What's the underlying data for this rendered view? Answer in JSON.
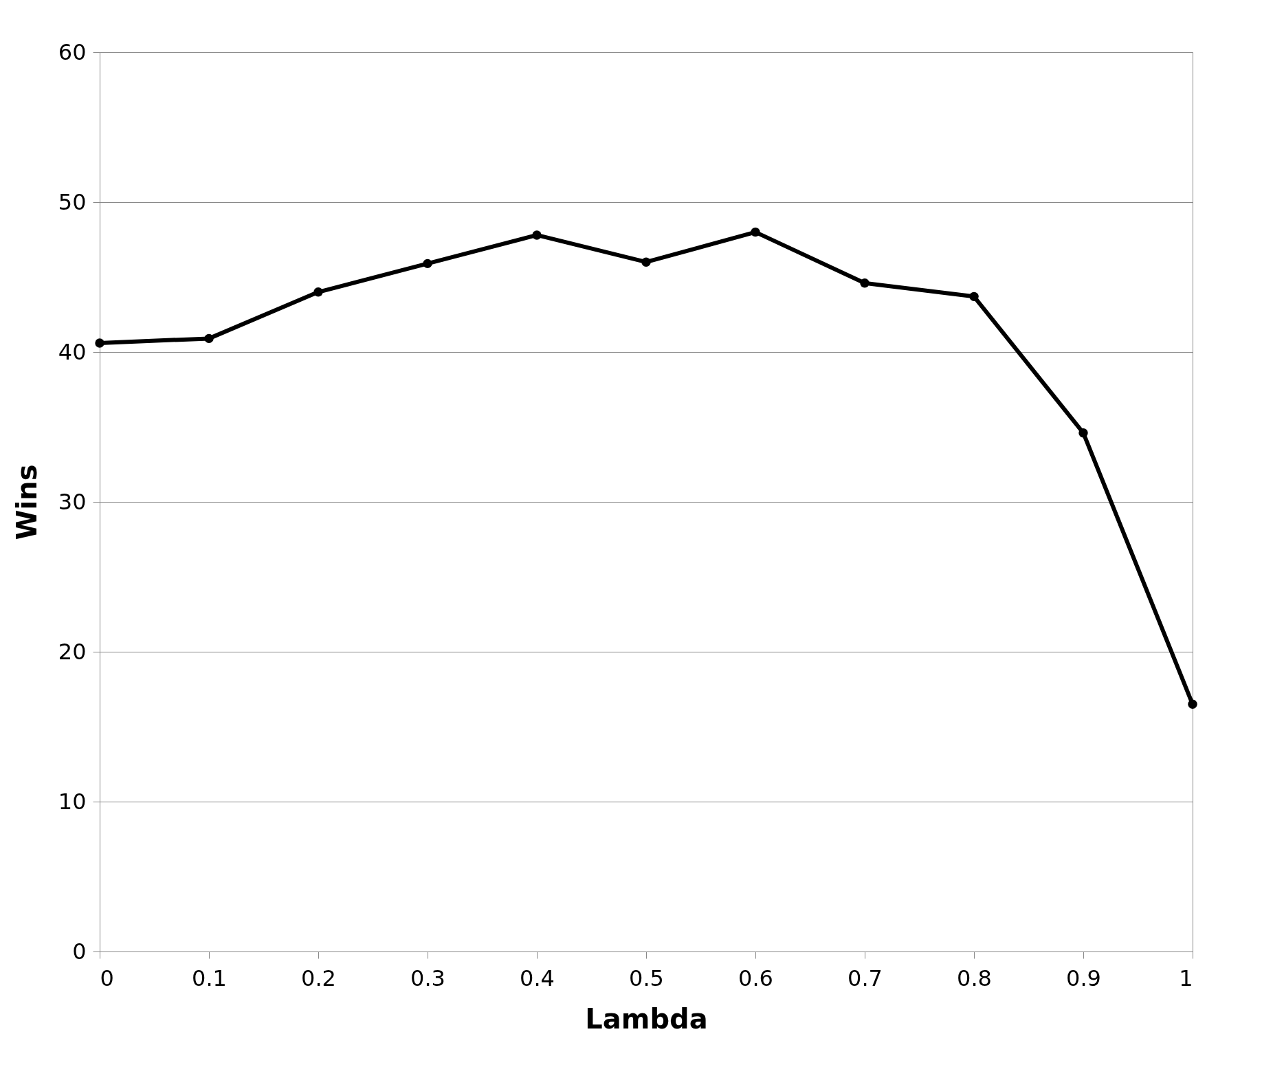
{
  "chart_data": {
    "type": "line",
    "xlabel": "Lambda",
    "ylabel": "Wins",
    "x": [
      0,
      0.1,
      0.2,
      0.3,
      0.4,
      0.5,
      0.6,
      0.7,
      0.8,
      0.9,
      1
    ],
    "series": [
      {
        "color": "#000000",
        "values": [
          40.6,
          40.9,
          44.0,
          45.9,
          47.8,
          46.0,
          48.0,
          44.6,
          43.7,
          34.6,
          16.5
        ]
      }
    ],
    "xlim": [
      0,
      1
    ],
    "xticks": [
      0,
      0.1,
      0.2,
      0.3,
      0.4,
      0.5,
      0.6,
      0.7,
      0.8,
      0.9,
      1
    ],
    "ylim": [
      0,
      60
    ],
    "yticks": [
      0,
      10,
      20,
      30,
      40,
      50,
      60
    ],
    "grid": "y",
    "legend": false,
    "marker": "circle",
    "line_style": "solid"
  }
}
